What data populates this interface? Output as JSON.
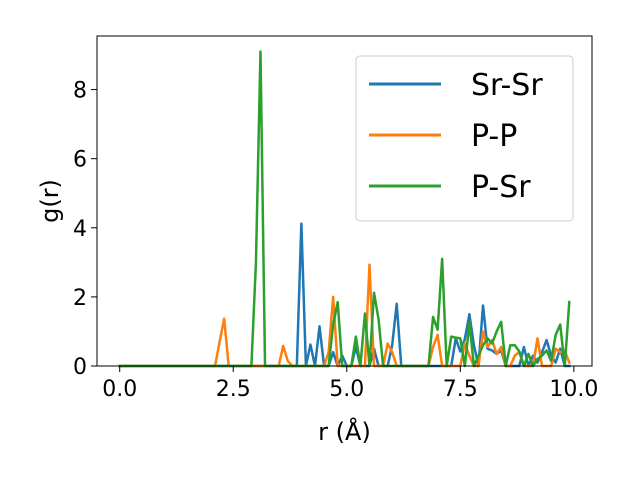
{
  "chart_data": {
    "type": "line",
    "title": "",
    "xlabel": "r (Å)",
    "ylabel": "g(r)",
    "xlim": [
      -0.5,
      10.4
    ],
    "ylim": [
      0,
      9.55
    ],
    "xticks": [
      0.0,
      2.5,
      5.0,
      7.5,
      10.0
    ],
    "xtick_labels": [
      "0.0",
      "2.5",
      "5.0",
      "7.5",
      "10.0"
    ],
    "yticks": [
      0,
      2,
      4,
      6,
      8
    ],
    "ytick_labels": [
      "0",
      "2",
      "4",
      "6",
      "8"
    ],
    "grid": false,
    "legend_position": "top-right",
    "series": [
      {
        "name": "Sr-Sr",
        "color": "#1f77b4",
        "points": [
          [
            0,
            0
          ],
          [
            3.9,
            0
          ],
          [
            4.0,
            4.12
          ],
          [
            4.1,
            0
          ],
          [
            4.2,
            0.62
          ],
          [
            4.3,
            0
          ],
          [
            4.4,
            1.15
          ],
          [
            4.5,
            0
          ],
          [
            4.6,
            0
          ],
          [
            4.7,
            0.4
          ],
          [
            4.8,
            0
          ],
          [
            4.9,
            0.3
          ],
          [
            5.0,
            0
          ],
          [
            5.1,
            0
          ],
          [
            5.2,
            0.55
          ],
          [
            5.3,
            0
          ],
          [
            5.5,
            0
          ],
          [
            5.6,
            0.5
          ],
          [
            5.7,
            0
          ],
          [
            5.9,
            0
          ],
          [
            6.0,
            0.6
          ],
          [
            6.1,
            1.8
          ],
          [
            6.2,
            0
          ],
          [
            7.3,
            0
          ],
          [
            7.4,
            0.8
          ],
          [
            7.5,
            0.42
          ],
          [
            7.6,
            0.78
          ],
          [
            7.7,
            1.5
          ],
          [
            7.8,
            0.6
          ],
          [
            7.9,
            0
          ],
          [
            8.0,
            1.75
          ],
          [
            8.1,
            0.5
          ],
          [
            8.2,
            0.45
          ],
          [
            8.3,
            0.35
          ],
          [
            8.4,
            0.45
          ],
          [
            8.5,
            0
          ],
          [
            8.8,
            0
          ],
          [
            8.9,
            0.55
          ],
          [
            9.0,
            0
          ],
          [
            9.1,
            0.3
          ],
          [
            9.2,
            0.1
          ],
          [
            9.3,
            0.4
          ],
          [
            9.4,
            0.75
          ],
          [
            9.5,
            0.3
          ],
          [
            9.6,
            0.1
          ],
          [
            9.7,
            0.5
          ],
          [
            9.8,
            0
          ],
          [
            9.9,
            0
          ]
        ]
      },
      {
        "name": "P-P",
        "color": "#ff7f0e",
        "points": [
          [
            0,
            0
          ],
          [
            2.1,
            0
          ],
          [
            2.2,
            0.7
          ],
          [
            2.3,
            1.37
          ],
          [
            2.4,
            0
          ],
          [
            3.5,
            0
          ],
          [
            3.6,
            0.58
          ],
          [
            3.7,
            0.15
          ],
          [
            3.8,
            0
          ],
          [
            4.5,
            0
          ],
          [
            4.6,
            0.4
          ],
          [
            4.7,
            2.0
          ],
          [
            4.8,
            0
          ],
          [
            5.4,
            0
          ],
          [
            5.5,
            2.93
          ],
          [
            5.6,
            0
          ],
          [
            5.8,
            0
          ],
          [
            5.9,
            0.65
          ],
          [
            6.0,
            0.4
          ],
          [
            6.1,
            0
          ],
          [
            6.8,
            0
          ],
          [
            6.9,
            0.55
          ],
          [
            7.0,
            0.9
          ],
          [
            7.1,
            0
          ],
          [
            7.5,
            0
          ],
          [
            7.6,
            0.65
          ],
          [
            7.7,
            0.3
          ],
          [
            7.8,
            0
          ],
          [
            7.9,
            0
          ],
          [
            8.0,
            1.0
          ],
          [
            8.1,
            0.55
          ],
          [
            8.2,
            0.75
          ],
          [
            8.3,
            0.35
          ],
          [
            8.4,
            0.55
          ],
          [
            8.5,
            0
          ],
          [
            8.6,
            0
          ],
          [
            8.7,
            0.3
          ],
          [
            8.8,
            0.4
          ],
          [
            8.9,
            0
          ],
          [
            9.1,
            0
          ],
          [
            9.2,
            0.8
          ],
          [
            9.3,
            0
          ],
          [
            9.5,
            0
          ],
          [
            9.6,
            0.5
          ],
          [
            9.7,
            0.4
          ],
          [
            9.8,
            0.45
          ],
          [
            9.9,
            0.1
          ]
        ]
      },
      {
        "name": "P-Sr",
        "color": "#2ca02c",
        "points": [
          [
            0,
            0
          ],
          [
            2.9,
            0
          ],
          [
            3.0,
            3.0
          ],
          [
            3.1,
            9.1
          ],
          [
            3.2,
            0
          ],
          [
            4.5,
            0
          ],
          [
            4.6,
            0
          ],
          [
            4.7,
            1.2
          ],
          [
            4.8,
            1.85
          ],
          [
            4.9,
            0
          ],
          [
            5.1,
            0
          ],
          [
            5.2,
            0.85
          ],
          [
            5.3,
            0
          ],
          [
            5.4,
            1.52
          ],
          [
            5.5,
            0
          ],
          [
            5.6,
            2.12
          ],
          [
            5.7,
            1.35
          ],
          [
            5.8,
            0
          ],
          [
            6.8,
            0
          ],
          [
            6.9,
            1.42
          ],
          [
            7.0,
            1.05
          ],
          [
            7.1,
            3.1
          ],
          [
            7.2,
            0
          ],
          [
            7.3,
            0.85
          ],
          [
            7.4,
            0.82
          ],
          [
            7.5,
            0.8
          ],
          [
            7.6,
            0
          ],
          [
            7.7,
            1.25
          ],
          [
            7.8,
            0
          ],
          [
            7.9,
            0.3
          ],
          [
            8.0,
            0.6
          ],
          [
            8.1,
            0.8
          ],
          [
            8.2,
            0.65
          ],
          [
            8.3,
            1.0
          ],
          [
            8.4,
            1.28
          ],
          [
            8.5,
            0
          ],
          [
            8.6,
            0.6
          ],
          [
            8.7,
            0.6
          ],
          [
            8.8,
            0.42
          ],
          [
            8.9,
            0
          ],
          [
            9.0,
            0.35
          ],
          [
            9.1,
            0
          ],
          [
            9.2,
            0.2
          ],
          [
            9.3,
            0.3
          ],
          [
            9.4,
            0.45
          ],
          [
            9.5,
            0.15
          ],
          [
            9.6,
            0.9
          ],
          [
            9.7,
            1.2
          ],
          [
            9.8,
            0
          ],
          [
            9.9,
            1.85
          ]
        ]
      }
    ]
  }
}
